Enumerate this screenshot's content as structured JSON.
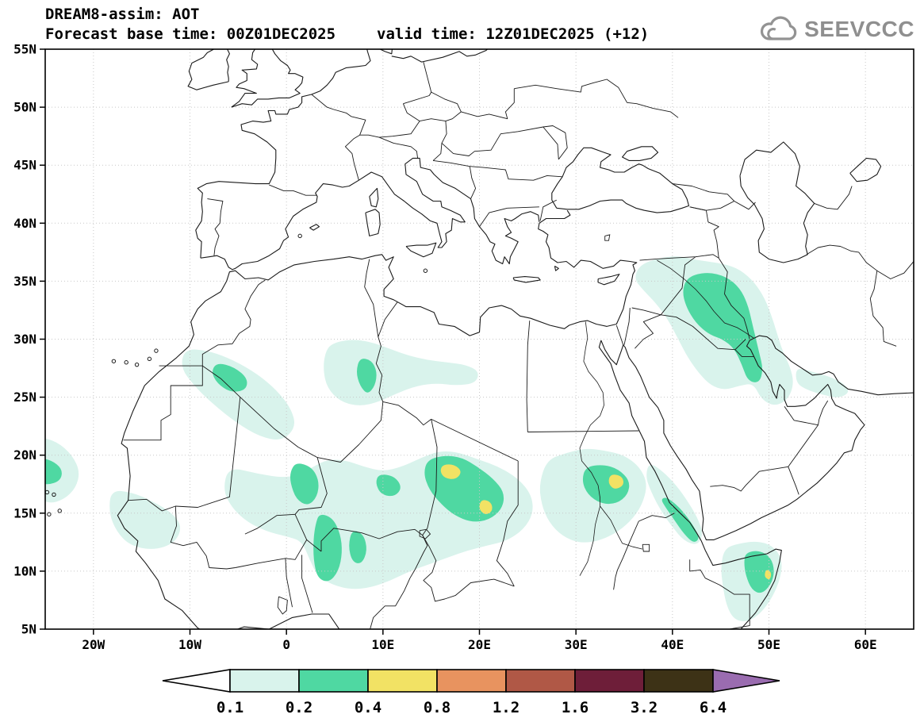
{
  "header": {
    "title": "DREAM8-assim: AOT",
    "forecast_base": "Forecast base time: 00Z01DEC2025",
    "valid_time": "valid time: 12Z01DEC2025 (+12)",
    "logo_text": "SEEVCCC"
  },
  "map": {
    "lat_ticks": [
      "55N",
      "50N",
      "45N",
      "40N",
      "35N",
      "30N",
      "25N",
      "20N",
      "15N",
      "10N",
      "5N"
    ],
    "lat_tick_values": [
      55,
      50,
      45,
      40,
      35,
      30,
      25,
      20,
      15,
      10,
      5
    ],
    "lon_ticks": [
      "20W",
      "10W",
      "0",
      "10E",
      "20E",
      "30E",
      "40E",
      "50E",
      "60E"
    ],
    "lon_tick_values": [
      -20,
      -10,
      0,
      10,
      20,
      30,
      40,
      50,
      60
    ]
  },
  "chart_data": {
    "type": "heatmap",
    "title": "DREAM8-assim AOT (aerosol optical thickness) filled-contour forecast map",
    "projection": {
      "lon_range": [
        -25,
        65
      ],
      "lat_range": [
        5,
        55
      ]
    },
    "levels": [
      0.1,
      0.2,
      0.4,
      0.8,
      1.2,
      1.6,
      3.2,
      6.4
    ],
    "colorbar_labels": [
      "0.1",
      "0.2",
      "0.4",
      "0.8",
      "1.2",
      "1.6",
      "3.2",
      "6.4"
    ],
    "level_colors": [
      "#ffffff",
      "#d9f3ec",
      "#4fd8a2",
      "#f2e264",
      "#e8935f",
      "#b05846",
      "#6e1e39",
      "#3d3216",
      "#9a6cb0"
    ],
    "grid_color": "#c8c8c8",
    "line_color": "#1a1a1a",
    "regions": [
      {
        "area": "tropical Atlantic west of Cape Verde (~24W, 18N)",
        "aot": "0.2-0.4"
      },
      {
        "area": "Senegal / Mauritania coastal band",
        "aot": "0.1-0.2"
      },
      {
        "area": "Western Sahara - NW Algeria (Tindouf area)",
        "aot": "0.2-0.4"
      },
      {
        "area": "central Algeria (~8E, 27N)",
        "aot": "0.2-0.4"
      },
      {
        "area": "northern Mali / Niger band",
        "aot": "0.2-0.4"
      },
      {
        "area": "Chad / Bodele (~17E, 18N and ~21E, 15N)",
        "aot": "0.4-0.8"
      },
      {
        "area": "western Nigeria / Benin",
        "aot": "0.2-0.4"
      },
      {
        "area": "Sudan (~34E, 18N)",
        "aot": "0.4-0.8"
      },
      {
        "area": "southern Red Sea coast (Eritrea)",
        "aot": "0.2-0.4"
      },
      {
        "area": "Horn of Africa, Somalia (~50E, 9.5N)",
        "aot": "0.4-0.8"
      },
      {
        "area": "Iraq / western Iran / Persian Gulf",
        "aot": "0.2-0.4"
      },
      {
        "area": "east of Persian Gulf (~55E, 26N)",
        "aot": "0.1-0.2"
      }
    ]
  }
}
